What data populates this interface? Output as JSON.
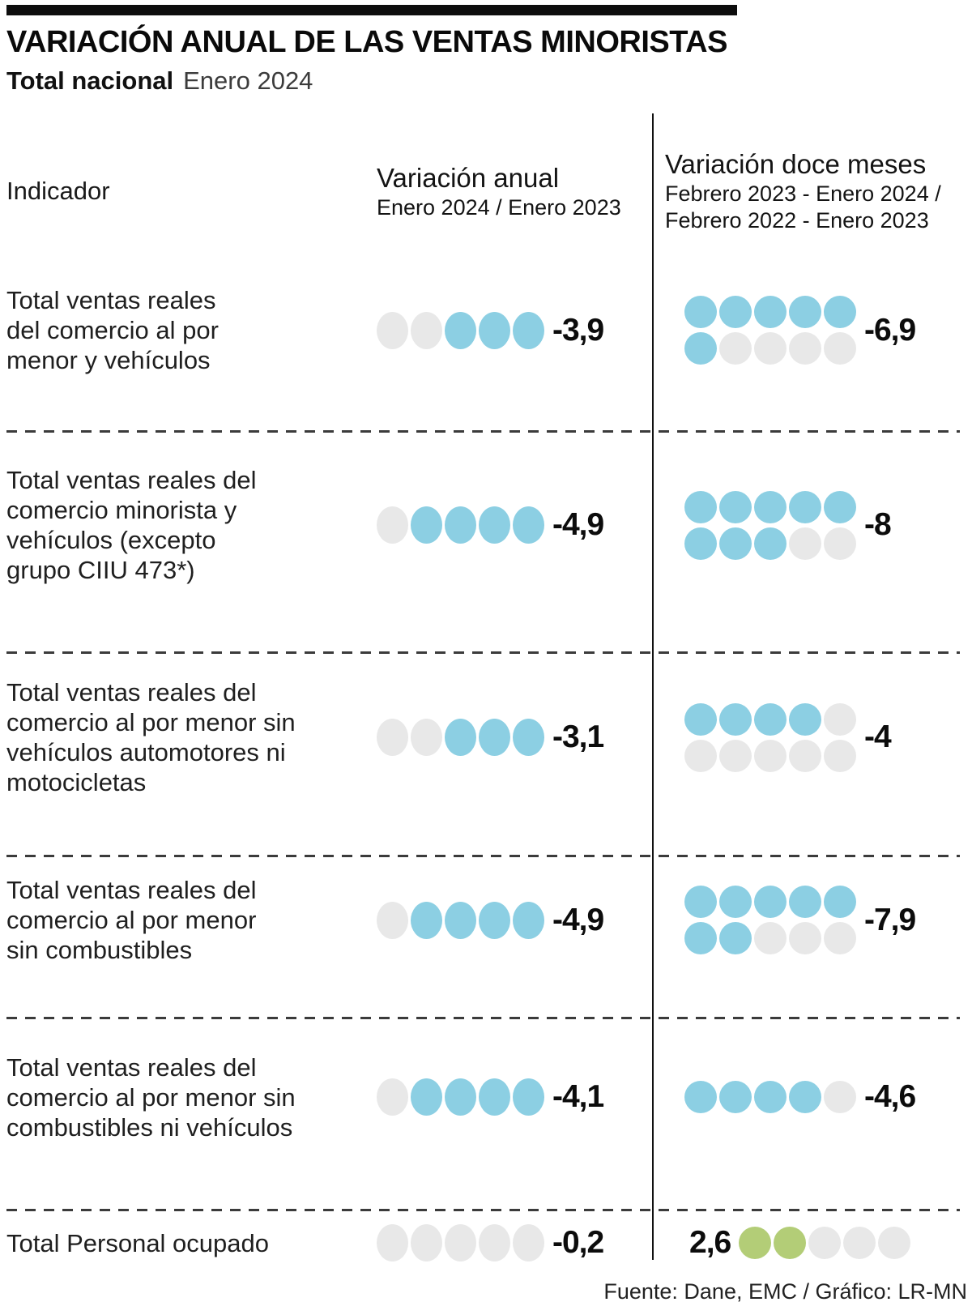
{
  "header": {
    "title": "VARIACIÓN ANUAL DE LAS VENTAS MINORISTAS",
    "subtitle_bold": "Total nacional",
    "subtitle_period": "Enero 2024"
  },
  "columns": {
    "indicator": "Indicador",
    "annual_title": "Variación anual",
    "annual_subtitle": "Enero 2024 / Enero 2023",
    "twelve_title": "Variación doce meses",
    "twelve_subtitle_line1": "Febrero 2023 - Enero 2024 /",
    "twelve_subtitle_line2": "Febrero 2022 - Enero 2023"
  },
  "rows": [
    {
      "indicator": "Total ventas reales\ndel comercio al por\nmenor y vehículos",
      "annual_value": "-3,9",
      "annual_dots": "oobbb",
      "twelve_value": "-6,9",
      "twelve_dots": "bbbbb|boooo",
      "twelve_value_side": "right"
    },
    {
      "indicator": "Total ventas reales del\ncomercio minorista y\nvehículos (excepto\ngrupo CIIU 473*)",
      "annual_value": "-4,9",
      "annual_dots": "obbbb",
      "twelve_value": "-8",
      "twelve_dots": "bbbbb|bbboo",
      "twelve_value_side": "right"
    },
    {
      "indicator": "Total ventas reales del\ncomercio al por menor sin\nvehículos automotores ni\nmotocicletas",
      "annual_value": "-3,1",
      "annual_dots": "oobbb",
      "twelve_value": "-4",
      "twelve_dots": "bbbbo|ooooo",
      "twelve_value_side": "right"
    },
    {
      "indicator": "Total ventas reales del\ncomercio al por menor\nsin combustibles",
      "annual_value": "-4,9",
      "annual_dots": "obbbb",
      "twelve_value": "-7,9",
      "twelve_dots": "bbbbb|bbooo",
      "twelve_value_side": "right"
    },
    {
      "indicator": "Total ventas reales del\ncomercio al por menor sin\ncombustibles ni vehículos",
      "annual_value": "-4,1",
      "annual_dots": "obbbb",
      "twelve_value": "-4,6",
      "twelve_dots": "bbbbo",
      "twelve_value_side": "right"
    },
    {
      "indicator": "Total Personal ocupado",
      "annual_value": "-0,2",
      "annual_dots": "ooooo",
      "twelve_value": "2,6",
      "twelve_dots": "ggooo",
      "twelve_value_side": "left"
    }
  ],
  "footer": {
    "source": "Fuente: Dane, EMC / Gráfico: LR-MN"
  },
  "colors": {
    "blue": "#8CCFE3",
    "gray": "#E8E8E8",
    "green": "#B3CD77"
  },
  "chart_data": {
    "type": "table",
    "title": "Variación anual de las ventas minoristas",
    "subtitle": "Total nacional, Enero 2024",
    "unit": "%",
    "categories": [
      "Total ventas reales del comercio al por menor y vehículos",
      "Total ventas reales del comercio minorista y vehículos (excepto grupo CIIU 473*)",
      "Total ventas reales del comercio al por menor sin vehículos automotores ni motocicletas",
      "Total ventas reales del comercio al por menor sin combustibles",
      "Total ventas reales del comercio al por menor sin combustibles ni vehículos",
      "Total Personal ocupado"
    ],
    "series": [
      {
        "name": "Variación anual (Enero 2024 / Enero 2023)",
        "values": [
          -3.9,
          -4.9,
          -3.1,
          -4.9,
          -4.1,
          -0.2
        ]
      },
      {
        "name": "Variación doce meses (Febrero 2023 - Enero 2024 / Febrero 2022 - Enero 2023)",
        "values": [
          -6.9,
          -8,
          -4,
          -7.9,
          -4.6,
          2.6
        ]
      }
    ],
    "legend_position": "none",
    "note": "Dot icons encode the magnitude of each value (one dot per whole unit); blue dots = negative variation, green dots = positive variation, gray dots = unfilled slots."
  }
}
